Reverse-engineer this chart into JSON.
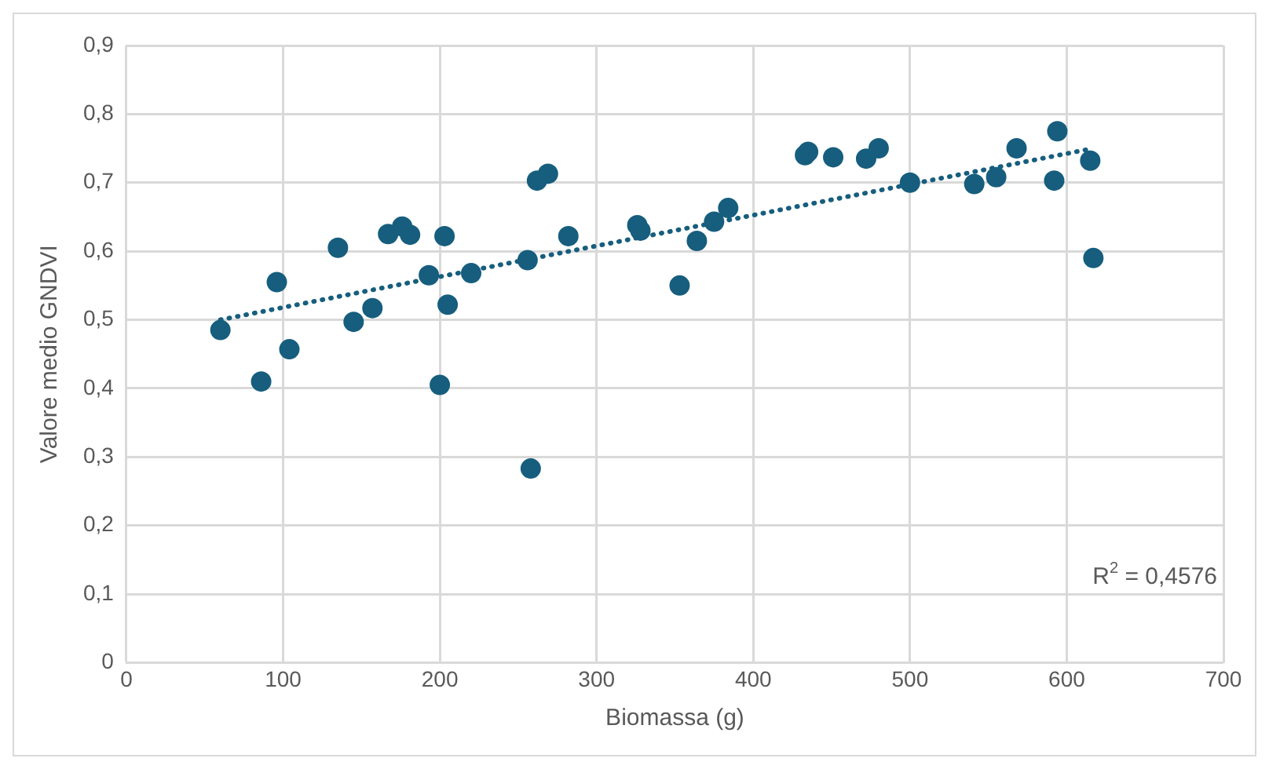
{
  "chart_data": {
    "type": "scatter",
    "xlabel": "Biomassa (g)",
    "ylabel": "Valore medio GNDVI",
    "xlim": [
      0,
      700
    ],
    "xticks": [
      0,
      100,
      200,
      300,
      400,
      500,
      600,
      700
    ],
    "ylim": [
      0,
      0.9
    ],
    "yticks": [
      {
        "value": 0,
        "label": "0"
      },
      {
        "value": 0.1,
        "label": "0,1"
      },
      {
        "value": 0.2,
        "label": "0,2"
      },
      {
        "value": 0.3,
        "label": "0,3"
      },
      {
        "value": 0.4,
        "label": "0,4"
      },
      {
        "value": 0.5,
        "label": "0,5"
      },
      {
        "value": 0.6,
        "label": "0,6"
      },
      {
        "value": 0.7,
        "label": "0,7"
      },
      {
        "value": 0.8,
        "label": "0,8"
      },
      {
        "value": 0.9,
        "label": "0,9"
      }
    ],
    "grid": true,
    "legend": false,
    "marker": "circle",
    "series": [
      {
        "color": "#175e7e",
        "x": [
          60,
          86,
          96,
          104,
          135,
          145,
          157,
          167,
          176,
          181,
          193,
          200,
          203,
          205,
          220,
          256,
          258,
          262,
          269,
          282,
          326,
          328,
          353,
          364,
          375,
          384,
          433,
          435,
          451,
          472,
          480,
          500,
          541,
          555,
          568,
          592,
          594,
          615,
          617
        ],
        "values": [
          0.485,
          0.41,
          0.555,
          0.457,
          0.605,
          0.497,
          0.517,
          0.625,
          0.636,
          0.624,
          0.565,
          0.405,
          0.622,
          0.522,
          0.568,
          0.587,
          0.283,
          0.703,
          0.713,
          0.622,
          0.638,
          0.63,
          0.55,
          0.615,
          0.643,
          0.663,
          0.74,
          0.745,
          0.737,
          0.735,
          0.75,
          0.7,
          0.698,
          0.708,
          0.75,
          0.703,
          0.775,
          0.732,
          0.59
        ]
      },
      {
        "type": "line",
        "color": "#175e7e",
        "line_style": "dotted",
        "marker": "none",
        "x": [
          60,
          617
        ],
        "values": [
          0.5,
          0.75
        ]
      }
    ],
    "annotations": [
      "R$^{2}$ = 0,4576"
    ]
  }
}
